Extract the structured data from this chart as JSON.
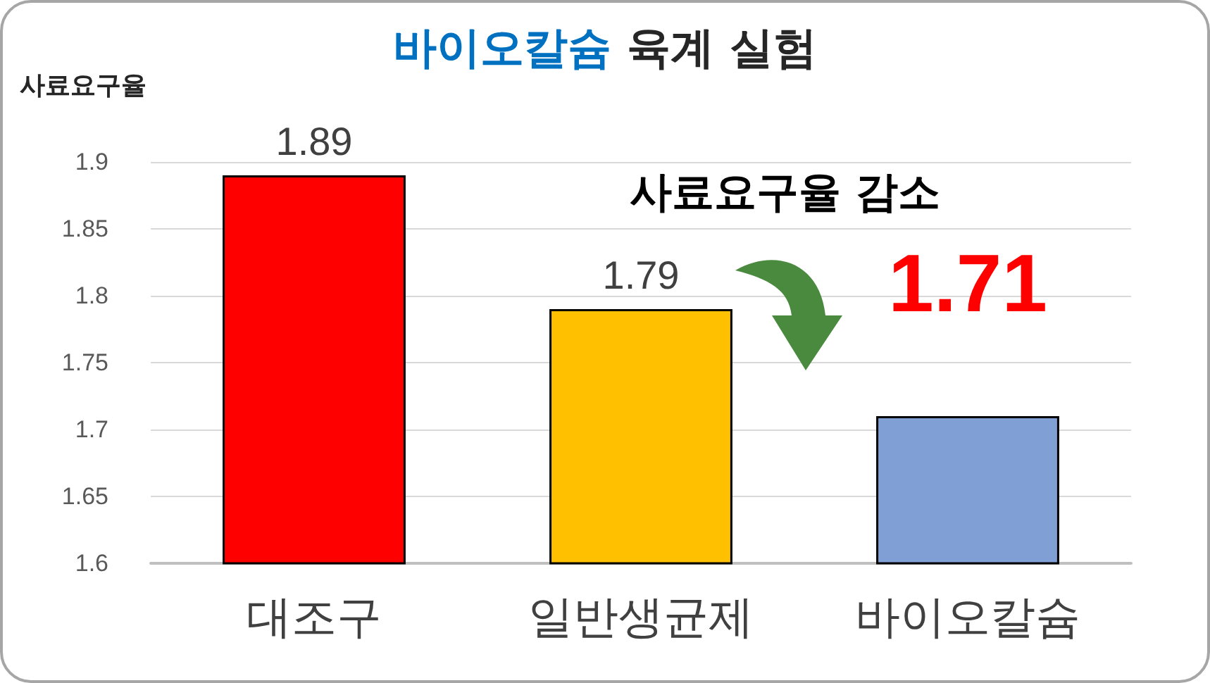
{
  "chart_data": {
    "type": "bar",
    "title": "바이오칼슘 육계 실험",
    "ylabel": "사료요구율",
    "categories": [
      "대조구",
      "일반생균제",
      "바이오칼슘"
    ],
    "values": [
      1.89,
      1.79,
      1.71
    ],
    "colors": [
      "#ff0000",
      "#ffc000",
      "#7f9fd5"
    ],
    "ylim": [
      1.6,
      1.9
    ],
    "yticks": [
      1.6,
      1.65,
      1.7,
      1.75,
      1.8,
      1.85,
      1.9
    ],
    "grid": "y",
    "data_labels": true,
    "annotations": [
      "사료요구율 감소"
    ]
  }
}
